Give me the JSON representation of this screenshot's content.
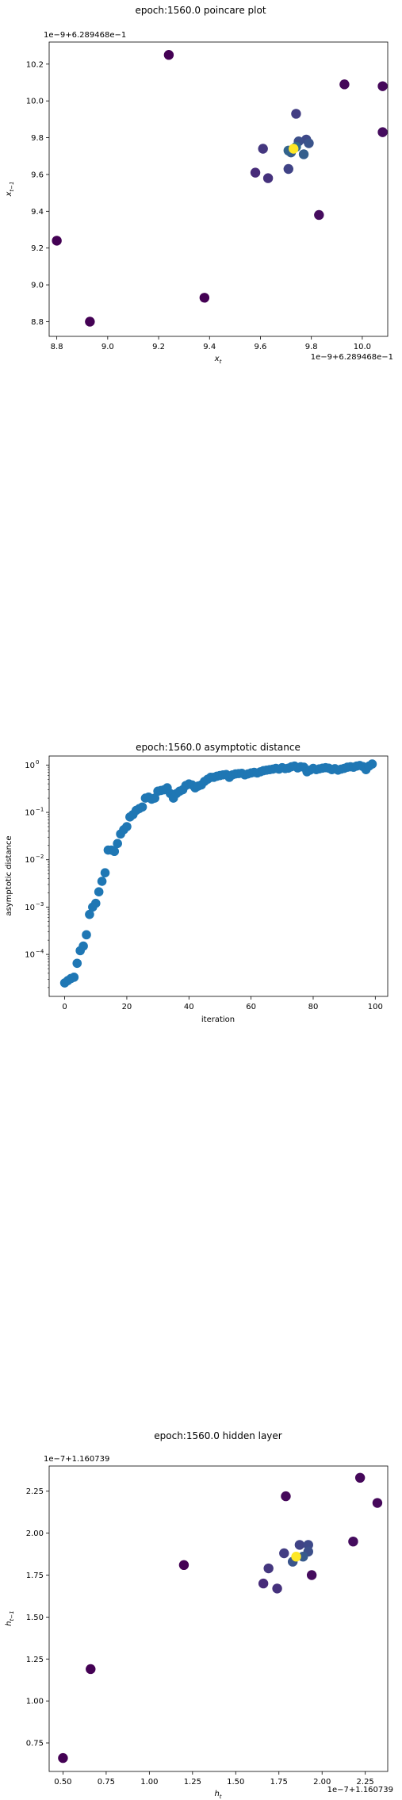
{
  "chart_data": [
    {
      "type": "scatter",
      "title": "epoch:1560.0 poincare plot",
      "xlabel": "x_t",
      "ylabel": "x_{t-1}",
      "x_offset_text": "1e−9+6.289468e−1",
      "y_offset_text": "1e−9+6.289468e−1",
      "xlim": [
        8.77,
        10.1
      ],
      "ylim": [
        8.72,
        10.32
      ],
      "xticks": [
        "8.8",
        "9.0",
        "9.2",
        "9.4",
        "9.6",
        "9.8",
        "10.0"
      ],
      "yticks": [
        "8.8",
        "9.0",
        "9.2",
        "9.4",
        "9.6",
        "9.8",
        "10.0",
        "10.2"
      ],
      "grid": false,
      "colormap": "viridis",
      "points": [
        {
          "x": 8.8,
          "y": 9.24,
          "c": 0.0
        },
        {
          "x": 8.93,
          "y": 8.8,
          "c": 0.0
        },
        {
          "x": 9.24,
          "y": 10.25,
          "c": 0.0
        },
        {
          "x": 9.38,
          "y": 8.93,
          "c": 0.0
        },
        {
          "x": 9.93,
          "y": 10.09,
          "c": 0.02
        },
        {
          "x": 10.08,
          "y": 10.08,
          "c": 0.02
        },
        {
          "x": 10.08,
          "y": 9.83,
          "c": 0.03
        },
        {
          "x": 9.83,
          "y": 9.38,
          "c": 0.03
        },
        {
          "x": 9.58,
          "y": 9.61,
          "c": 0.12
        },
        {
          "x": 9.63,
          "y": 9.58,
          "c": 0.14
        },
        {
          "x": 9.61,
          "y": 9.74,
          "c": 0.16
        },
        {
          "x": 9.74,
          "y": 9.93,
          "c": 0.18
        },
        {
          "x": 9.71,
          "y": 9.63,
          "c": 0.2
        },
        {
          "x": 9.78,
          "y": 9.79,
          "c": 0.22
        },
        {
          "x": 9.75,
          "y": 9.78,
          "c": 0.24
        },
        {
          "x": 9.79,
          "y": 9.77,
          "c": 0.26
        },
        {
          "x": 9.72,
          "y": 9.72,
          "c": 0.28
        },
        {
          "x": 9.77,
          "y": 9.71,
          "c": 0.3
        },
        {
          "x": 9.71,
          "y": 9.73,
          "c": 0.32
        },
        {
          "x": 9.74,
          "y": 9.75,
          "c": 0.34
        },
        {
          "x": 9.73,
          "y": 9.74,
          "c": 1.0
        }
      ]
    },
    {
      "type": "scatter",
      "title": "epoch:1560.0 asymptotic distance",
      "xlabel": "iteration",
      "ylabel": "asymptotic distance",
      "yscale": "log",
      "xlim": [
        -5,
        104
      ],
      "ylim": [
        1.3e-05,
        1.55
      ],
      "xticks": [
        0,
        20,
        40,
        60,
        80,
        100
      ],
      "yticks": [
        {
          "v": 0.0001,
          "base": "10",
          "exp": "−4"
        },
        {
          "v": 0.001,
          "base": "10",
          "exp": "−3"
        },
        {
          "v": 0.01,
          "base": "10",
          "exp": "−2"
        },
        {
          "v": 0.1,
          "base": "10",
          "exp": "−1"
        },
        {
          "v": 1,
          "base": "10",
          "exp": "0"
        }
      ],
      "grid": false,
      "marker_color": "#1f77b4",
      "x": [
        0,
        1,
        2,
        3,
        4,
        5,
        6,
        7,
        8,
        9,
        10,
        11,
        12,
        13,
        14,
        15,
        16,
        17,
        18,
        19,
        20,
        21,
        22,
        23,
        24,
        25,
        26,
        27,
        28,
        29,
        30,
        31,
        32,
        33,
        34,
        35,
        36,
        37,
        38,
        39,
        40,
        41,
        42,
        43,
        44,
        45,
        46,
        47,
        48,
        49,
        50,
        51,
        52,
        53,
        54,
        55,
        56,
        57,
        58,
        59,
        60,
        61,
        62,
        63,
        64,
        65,
        66,
        67,
        68,
        69,
        70,
        71,
        72,
        73,
        74,
        75,
        76,
        77,
        78,
        79,
        80,
        81,
        82,
        83,
        84,
        85,
        86,
        87,
        88,
        89,
        90,
        91,
        92,
        93,
        94,
        95,
        96,
        97,
        98,
        99
      ],
      "y": [
        2.5e-05,
        2.8e-05,
        3.1e-05,
        3.3e-05,
        6.5e-05,
        0.00012,
        0.00015,
        0.00026,
        0.0007,
        0.001,
        0.0012,
        0.0021,
        0.0035,
        0.0053,
        0.016,
        0.016,
        0.015,
        0.022,
        0.035,
        0.043,
        0.05,
        0.08,
        0.09,
        0.11,
        0.12,
        0.13,
        0.2,
        0.21,
        0.19,
        0.2,
        0.28,
        0.29,
        0.3,
        0.33,
        0.25,
        0.2,
        0.25,
        0.28,
        0.3,
        0.37,
        0.4,
        0.38,
        0.33,
        0.36,
        0.38,
        0.45,
        0.5,
        0.55,
        0.55,
        0.58,
        0.6,
        0.62,
        0.63,
        0.55,
        0.62,
        0.65,
        0.66,
        0.67,
        0.62,
        0.65,
        0.68,
        0.7,
        0.68,
        0.72,
        0.76,
        0.78,
        0.8,
        0.82,
        0.85,
        0.82,
        0.88,
        0.84,
        0.86,
        0.92,
        0.95,
        0.87,
        0.92,
        0.9,
        0.72,
        0.78,
        0.85,
        0.8,
        0.83,
        0.86,
        0.88,
        0.86,
        0.8,
        0.84,
        0.78,
        0.82,
        0.85,
        0.9,
        0.92,
        0.9,
        0.95,
        0.98,
        0.93,
        0.8,
        0.95,
        1.05
      ]
    },
    {
      "type": "scatter",
      "title": "epoch:1560.0 hidden layer",
      "xlabel": "h_t",
      "ylabel": "h_{t-1}",
      "x_offset_text": "1e−7+1.160739",
      "y_offset_text": "1e−7+1.160739",
      "xlim": [
        0.42,
        2.38
      ],
      "ylim": [
        0.58,
        2.4
      ],
      "xticks": [
        "0.50",
        "0.75",
        "1.00",
        "1.25",
        "1.50",
        "1.75",
        "2.00",
        "2.25"
      ],
      "yticks": [
        "0.75",
        "1.00",
        "1.25",
        "1.50",
        "1.75",
        "2.00",
        "2.25"
      ],
      "grid": false,
      "colormap": "viridis",
      "points": [
        {
          "x": 0.5,
          "y": 0.66,
          "c": 0.0
        },
        {
          "x": 0.66,
          "y": 1.19,
          "c": 0.0
        },
        {
          "x": 1.2,
          "y": 1.81,
          "c": 0.0
        },
        {
          "x": 2.22,
          "y": 2.33,
          "c": 0.02
        },
        {
          "x": 2.32,
          "y": 2.18,
          "c": 0.02
        },
        {
          "x": 1.79,
          "y": 2.22,
          "c": 0.02
        },
        {
          "x": 2.18,
          "y": 1.95,
          "c": 0.03
        },
        {
          "x": 1.94,
          "y": 1.75,
          "c": 0.03
        },
        {
          "x": 1.66,
          "y": 1.7,
          "c": 0.12
        },
        {
          "x": 1.74,
          "y": 1.67,
          "c": 0.14
        },
        {
          "x": 1.69,
          "y": 1.79,
          "c": 0.16
        },
        {
          "x": 1.78,
          "y": 1.88,
          "c": 0.18
        },
        {
          "x": 1.87,
          "y": 1.93,
          "c": 0.2
        },
        {
          "x": 1.92,
          "y": 1.93,
          "c": 0.22
        },
        {
          "x": 1.92,
          "y": 1.89,
          "c": 0.24
        },
        {
          "x": 1.83,
          "y": 1.83,
          "c": 0.26
        },
        {
          "x": 1.89,
          "y": 1.86,
          "c": 0.28
        },
        {
          "x": 1.85,
          "y": 1.86,
          "c": 1.0
        }
      ]
    }
  ]
}
